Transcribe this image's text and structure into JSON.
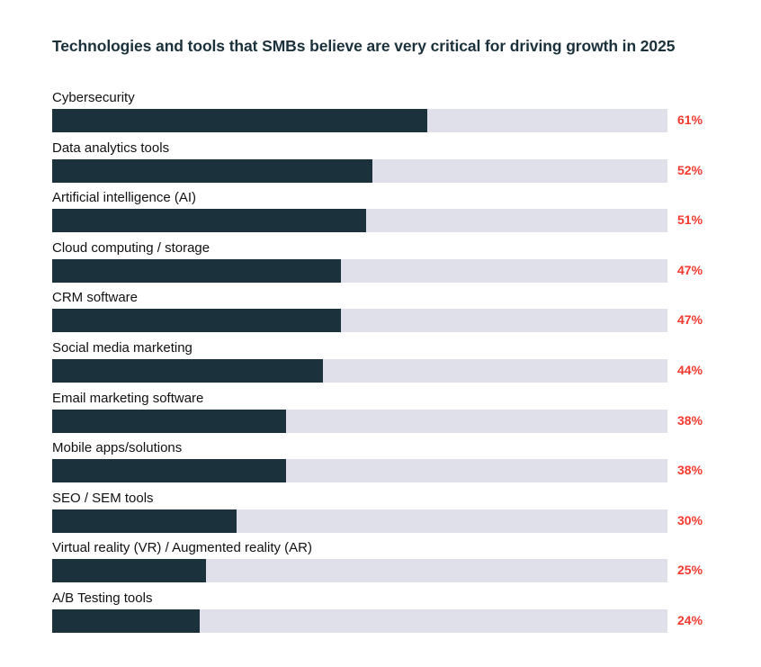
{
  "chart_data": {
    "type": "bar",
    "orientation": "horizontal",
    "title": "Technologies and tools that SMBs believe are very critical for driving growth in 2025",
    "categories": [
      "Cybersecurity",
      "Data analytics tools",
      "Artificial intelligence (AI)",
      "Cloud computing / storage",
      "CRM software",
      "Social media marketing",
      "Email marketing software",
      "Mobile apps/solutions",
      "SEO / SEM tools",
      "Virtual reality (VR) / Augmented reality (AR)",
      "A/B Testing tools"
    ],
    "values": [
      61,
      52,
      51,
      47,
      47,
      44,
      38,
      38,
      30,
      25,
      24
    ],
    "value_labels": [
      "61%",
      "52%",
      "51%",
      "47%",
      "47%",
      "44%",
      "38%",
      "38%",
      "30%",
      "25%",
      "24%"
    ],
    "xlim": [
      0,
      100
    ],
    "grid": false,
    "colors": {
      "bar": "#1b313b",
      "track": "#e0e0ea",
      "value_label": "#f5392f",
      "title": "#1b313b"
    }
  }
}
